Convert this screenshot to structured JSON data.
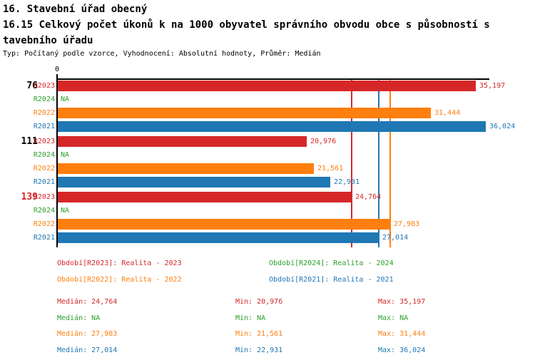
{
  "header": {
    "title": "16. Stavební úřad obecný",
    "subtitle_line1": "16.15 Celkový počet úkonů k na 1000 obyvatel správního obvodu obce s působností s",
    "subtitle_line2": "tavebního úřadu",
    "meta": "Typ: Počítaný podle vzorce, Vyhodnocení: Absolutní hodnoty, Průměr: Medián"
  },
  "colors": {
    "series": {
      "R2023": "#d62728",
      "R2024": "#2ca02c",
      "R2022": "#ff7f0e",
      "R2021": "#1f77b4"
    },
    "axis": "#000000",
    "group_label_highlight": "#d62728"
  },
  "chart_data": {
    "type": "bar",
    "orientation": "horizontal",
    "xlim": [
      0,
      36400
    ],
    "x_tick_labels": [
      "0"
    ],
    "grid": false,
    "series_order": [
      "R2023",
      "R2024",
      "R2022",
      "R2021"
    ],
    "groups": [
      {
        "label": "76",
        "label_color": "#000000",
        "bars": [
          {
            "series": "R2023",
            "value": 35197,
            "display": "35,197"
          },
          {
            "series": "R2024",
            "value": null,
            "display": "NA"
          },
          {
            "series": "R2022",
            "value": 31444,
            "display": "31,444"
          },
          {
            "series": "R2021",
            "value": 36024,
            "display": "36,024"
          }
        ]
      },
      {
        "label": "111",
        "label_color": "#000000",
        "bars": [
          {
            "series": "R2023",
            "value": 20976,
            "display": "20,976"
          },
          {
            "series": "R2024",
            "value": null,
            "display": "NA"
          },
          {
            "series": "R2022",
            "value": 21561,
            "display": "21,561"
          },
          {
            "series": "R2021",
            "value": 22931,
            "display": "22,931"
          }
        ]
      },
      {
        "label": "139",
        "label_color": "#d62728",
        "bars": [
          {
            "series": "R2023",
            "value": 24764,
            "display": "24,764"
          },
          {
            "series": "R2024",
            "value": null,
            "display": "NA"
          },
          {
            "series": "R2022",
            "value": 27983,
            "display": "27,983"
          },
          {
            "series": "R2021",
            "value": 27014,
            "display": "27,014"
          }
        ]
      }
    ],
    "median_lines": [
      {
        "series": "R2023",
        "value": 24764
      },
      {
        "series": "R2021",
        "value": 27014
      },
      {
        "series": "R2022",
        "value": 27983
      }
    ]
  },
  "legend": {
    "items": [
      {
        "label": "Období[R2023]: Realita - 2023",
        "series": "R2023",
        "row": 0,
        "col": 0
      },
      {
        "label": "Období[R2024]: Realita - 2024",
        "series": "R2024",
        "row": 0,
        "col": 1
      },
      {
        "label": "Období[R2022]: Realita - 2022",
        "series": "R2022",
        "row": 1,
        "col": 0
      },
      {
        "label": "Období[R2021]: Realita - 2021",
        "series": "R2021",
        "row": 1,
        "col": 1
      }
    ]
  },
  "stats": {
    "labels": {
      "median": "Medián",
      "min": "Min",
      "max": "Max"
    },
    "rows": [
      {
        "series": "R2023",
        "median": "24,764",
        "min": "20,976",
        "max": "35,197"
      },
      {
        "series": "R2024",
        "median": "NA",
        "min": "NA",
        "max": "NA"
      },
      {
        "series": "R2022",
        "median": "27,983",
        "min": "21,561",
        "max": "31,444"
      },
      {
        "series": "R2021",
        "median": "27,014",
        "min": "22,931",
        "max": "36,024"
      }
    ]
  }
}
